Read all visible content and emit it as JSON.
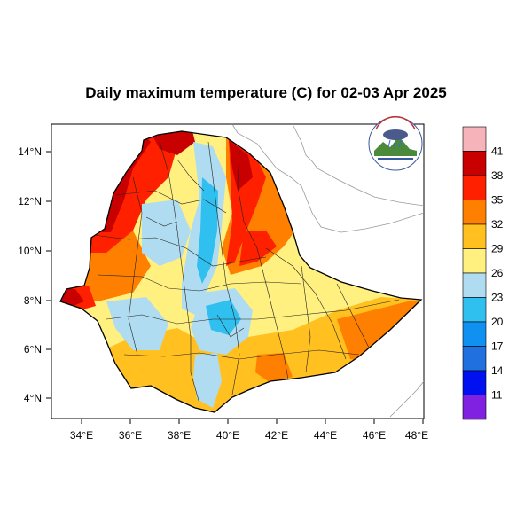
{
  "title": "Daily maximum temperature (C) for 02-03 Apr 2025",
  "map": {
    "lat_ticks": [
      "4°N",
      "6°N",
      "8°N",
      "10°N",
      "12°N",
      "14°N"
    ],
    "lon_ticks": [
      "34°E",
      "36°E",
      "38°E",
      "40°E",
      "42°E",
      "44°E",
      "46°E",
      "48°E"
    ],
    "lon_range": [
      33,
      48
    ],
    "lat_range": [
      3,
      15
    ],
    "logo": {
      "text_top": "የኢትዮጵያ ሚቲዎሮሎጂ ኢንስቲትዩት",
      "text_bottom": "Ethiopian Meteorology Institute"
    }
  },
  "colorbar": {
    "labels": [
      "41",
      "38",
      "35",
      "32",
      "29",
      "26",
      "23",
      "20",
      "17",
      "14",
      "11"
    ],
    "colors": [
      "#f6b3b9",
      "#c80000",
      "#ff2000",
      "#ff8000",
      "#ffc020",
      "#fff080",
      "#b0dcf2",
      "#30c0f0",
      "#1090f0",
      "#2070e0",
      "#0010f0",
      "#8020e0"
    ]
  },
  "colors": {
    "very_hot": "#c80000",
    "hot": "#ff2000",
    "warm": "#ff8000",
    "mild_warm": "#ffc020",
    "mild": "#fff080",
    "cool": "#b0dcf2",
    "cooler": "#30c0f0"
  }
}
